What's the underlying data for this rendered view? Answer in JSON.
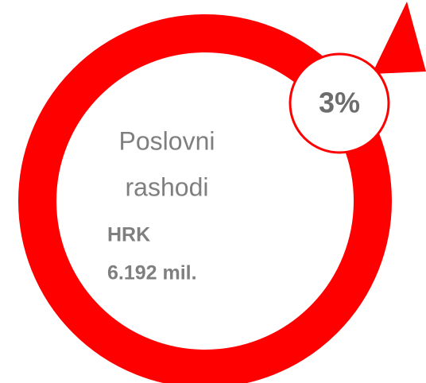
{
  "label": [
    "Poslovni",
    "rashodi"
  ],
  "currency": "HRK",
  "amount": "6.192 mil.",
  "change": "3%"
}
